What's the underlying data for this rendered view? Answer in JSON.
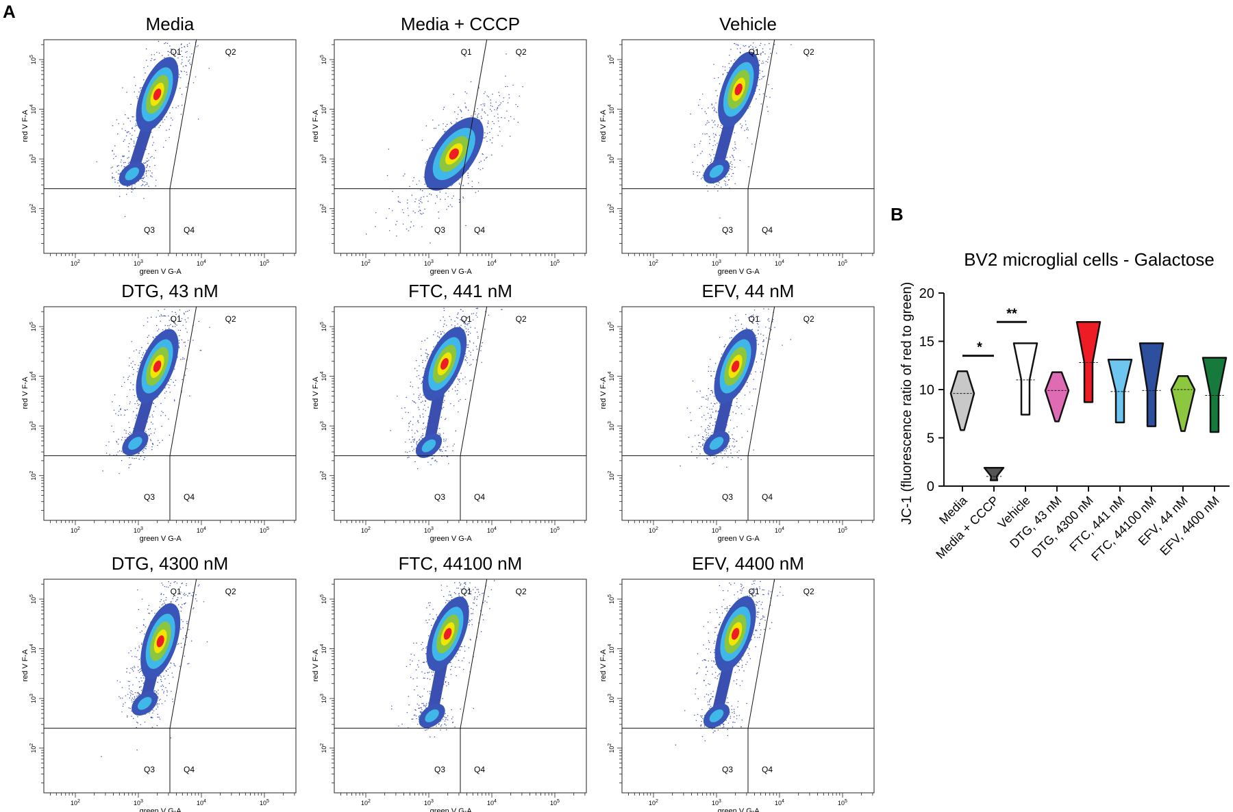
{
  "figure": {
    "panel_a_label": "A",
    "panel_b_label": "B"
  },
  "chart_data": [
    {
      "type": "scatter",
      "subtype": "flow-cytometry-density-plots",
      "x_axis_label": "green V G-A",
      "y_axis_label": "red V F-A",
      "x_tick_labels": [
        "10^2",
        "10^3",
        "10^4",
        "10^5"
      ],
      "y_tick_labels": [
        "10^2",
        "10^3",
        "10^4",
        "10^5"
      ],
      "quadrant_labels": [
        "Q1",
        "Q2",
        "Q3",
        "Q4"
      ],
      "plots": [
        {
          "title": "Media",
          "pop_main": [
            3.3,
            4.3
          ],
          "pop_low": [
            2.9,
            2.7
          ],
          "angle": -68
        },
        {
          "title": "Media + CCCP",
          "pop_main": [
            3.4,
            3.1
          ],
          "pop_low": [
            3.35,
            3.0
          ],
          "angle": -55
        },
        {
          "title": "Vehicle",
          "pop_main": [
            3.35,
            4.4
          ],
          "pop_low": [
            3.0,
            2.75
          ],
          "angle": -70
        },
        {
          "title": "DTG, 43 nM",
          "pop_main": [
            3.3,
            4.2
          ],
          "pop_low": [
            2.95,
            2.65
          ],
          "angle": -68
        },
        {
          "title": "FTC, 441 nM",
          "pop_main": [
            3.25,
            4.25
          ],
          "pop_low": [
            3.0,
            2.6
          ],
          "angle": -66
        },
        {
          "title": "EFV, 44 nM",
          "pop_main": [
            3.3,
            4.2
          ],
          "pop_low": [
            3.0,
            2.65
          ],
          "angle": -68
        },
        {
          "title": "DTG, 4300 nM",
          "pop_main": [
            3.35,
            4.15
          ],
          "pop_low": [
            3.1,
            2.9
          ],
          "angle": -72
        },
        {
          "title": "FTC, 44100 nM",
          "pop_main": [
            3.3,
            4.3
          ],
          "pop_low": [
            3.05,
            2.65
          ],
          "angle": -68
        },
        {
          "title": "EFV, 4400 nM",
          "pop_main": [
            3.3,
            4.3
          ],
          "pop_low": [
            3.0,
            2.65
          ],
          "angle": -70
        }
      ]
    },
    {
      "type": "violin",
      "title": "BV2 microglial cells - Galactose",
      "ylabel": "JC-1 (fluorescence ratio of red to green)",
      "ylim": [
        0,
        20
      ],
      "yticks": [
        0,
        5,
        10,
        15,
        20
      ],
      "categories": [
        "Media",
        "Media + CCCP",
        "Vehicle",
        "DTG, 43 nM",
        "DTG, 4300 nM",
        "FTC, 441 nM",
        "FTC, 44100 nM",
        "EFV, 44 nM",
        "EFV, 4400 nM"
      ],
      "series": [
        {
          "name": "Media",
          "min": 5.8,
          "max": 11.9,
          "median": 9.6,
          "color": "#c8c8c8"
        },
        {
          "name": "Media + CCCP",
          "min": 0.6,
          "max": 1.9,
          "median": 1.0,
          "color": "#555555"
        },
        {
          "name": "Vehicle",
          "min": 7.4,
          "max": 14.8,
          "median": 11.0,
          "color": "#ffffff"
        },
        {
          "name": "DTG, 43 nM",
          "min": 6.7,
          "max": 11.8,
          "median": 9.9,
          "color": "#e06bb5"
        },
        {
          "name": "DTG, 4300 nM",
          "min": 8.7,
          "max": 17.0,
          "median": 12.8,
          "color": "#ee1c24"
        },
        {
          "name": "FTC, 441 nM",
          "min": 6.6,
          "max": 13.1,
          "median": 9.8,
          "color": "#6ec6f0"
        },
        {
          "name": "FTC, 44100 nM",
          "min": 6.2,
          "max": 14.8,
          "median": 9.9,
          "color": "#2e4e9e"
        },
        {
          "name": "EFV, 44 nM",
          "min": 5.7,
          "max": 11.4,
          "median": 10.0,
          "color": "#8dc63f"
        },
        {
          "name": "EFV, 4400 nM",
          "min": 5.6,
          "max": 13.3,
          "median": 9.4,
          "color": "#157a3c"
        }
      ],
      "significance": [
        {
          "label": "*",
          "between": [
            "Media",
            "Media + CCCP"
          ]
        },
        {
          "label": "**",
          "between": [
            "Media + CCCP",
            "Vehicle"
          ]
        }
      ]
    }
  ]
}
